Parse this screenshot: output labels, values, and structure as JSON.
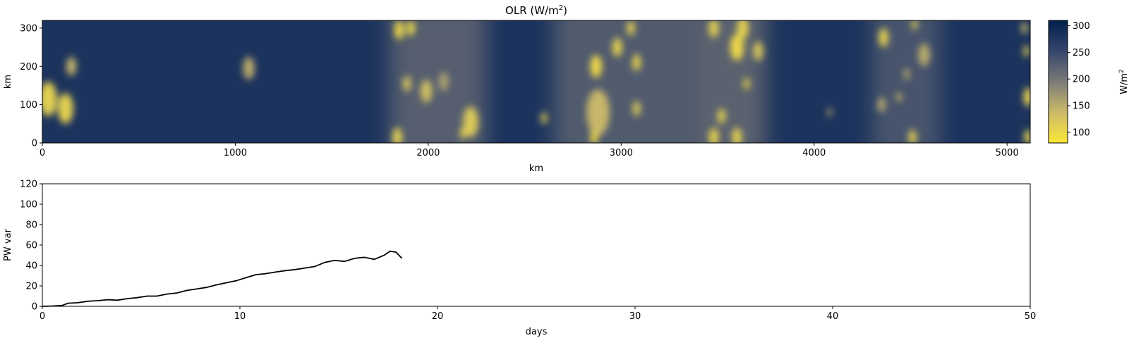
{
  "chart_data": [
    {
      "type": "heatmap",
      "title": "OLR (W/m",
      "title_superscript": "2",
      "title_suffix": ")",
      "xlabel": "km",
      "ylabel": "km",
      "xlim": [
        0,
        5120
      ],
      "ylim": [
        0,
        320
      ],
      "xticks": [
        0,
        1000,
        2000,
        3000,
        4000,
        5000
      ],
      "yticks": [
        0,
        100,
        200,
        300
      ],
      "colormap": "cividis_r",
      "colorbar": {
        "label": "W/m",
        "label_superscript": "2",
        "range": [
          80,
          310
        ],
        "ticks": [
          100,
          150,
          200,
          250,
          300
        ],
        "color_low": "#fde737",
        "color_mid": "#7c7b78",
        "color_high": "#00204c"
      },
      "background_value": 280,
      "moist_bands": [
        {
          "x": [
            1800,
            2300
          ],
          "value": 210
        },
        {
          "x": [
            2650,
            3400
          ],
          "value": 215
        },
        {
          "x": [
            3400,
            3750
          ],
          "value": 205
        },
        {
          "x": [
            4300,
            4650
          ],
          "value": 225
        }
      ],
      "clouds": [
        {
          "x": 30,
          "y": 115,
          "r": 45,
          "value": 110
        },
        {
          "x": 120,
          "y": 90,
          "r": 40,
          "value": 110
        },
        {
          "x": 150,
          "y": 200,
          "r": 25,
          "value": 140
        },
        {
          "x": 1070,
          "y": 195,
          "r": 30,
          "value": 150
        },
        {
          "x": 1850,
          "y": 295,
          "r": 25,
          "value": 100
        },
        {
          "x": 1910,
          "y": 300,
          "r": 20,
          "value": 95
        },
        {
          "x": 1890,
          "y": 155,
          "r": 20,
          "value": 120
        },
        {
          "x": 1840,
          "y": 15,
          "r": 25,
          "value": 110
        },
        {
          "x": 1990,
          "y": 135,
          "r": 30,
          "value": 130
        },
        {
          "x": 2080,
          "y": 160,
          "r": 25,
          "value": 160
        },
        {
          "x": 2180,
          "y": 25,
          "r": 15,
          "value": 100
        },
        {
          "x": 2220,
          "y": 55,
          "r": 40,
          "value": 120
        },
        {
          "x": 2600,
          "y": 65,
          "r": 15,
          "value": 110
        },
        {
          "x": 2870,
          "y": 200,
          "r": 30,
          "value": 100
        },
        {
          "x": 2880,
          "y": 80,
          "r": 60,
          "value": 140
        },
        {
          "x": 2980,
          "y": 250,
          "r": 25,
          "value": 110
        },
        {
          "x": 2860,
          "y": 15,
          "r": 20,
          "value": 100
        },
        {
          "x": 3050,
          "y": 300,
          "r": 20,
          "value": 110
        },
        {
          "x": 3080,
          "y": 210,
          "r": 22,
          "value": 110
        },
        {
          "x": 3080,
          "y": 90,
          "r": 20,
          "value": 120
        },
        {
          "x": 3480,
          "y": 300,
          "r": 25,
          "value": 110
        },
        {
          "x": 3600,
          "y": 250,
          "r": 35,
          "value": 100
        },
        {
          "x": 3630,
          "y": 300,
          "r": 30,
          "value": 110
        },
        {
          "x": 3710,
          "y": 240,
          "r": 25,
          "value": 120
        },
        {
          "x": 3650,
          "y": 155,
          "r": 15,
          "value": 100
        },
        {
          "x": 3520,
          "y": 70,
          "r": 20,
          "value": 110
        },
        {
          "x": 3480,
          "y": 15,
          "r": 25,
          "value": 110
        },
        {
          "x": 3600,
          "y": 15,
          "r": 25,
          "value": 110
        },
        {
          "x": 4360,
          "y": 275,
          "r": 25,
          "value": 110
        },
        {
          "x": 4520,
          "y": 310,
          "r": 15,
          "value": 120
        },
        {
          "x": 4570,
          "y": 230,
          "r": 30,
          "value": 150
        },
        {
          "x": 4480,
          "y": 180,
          "r": 15,
          "value": 150
        },
        {
          "x": 4440,
          "y": 120,
          "r": 12,
          "value": 120
        },
        {
          "x": 4350,
          "y": 100,
          "r": 20,
          "value": 150
        },
        {
          "x": 4510,
          "y": 15,
          "r": 20,
          "value": 110
        },
        {
          "x": 4080,
          "y": 80,
          "r": 12,
          "value": 160
        },
        {
          "x": 5100,
          "y": 240,
          "r": 15,
          "value": 110
        },
        {
          "x": 5110,
          "y": 120,
          "r": 25,
          "value": 110
        },
        {
          "x": 5110,
          "y": 15,
          "r": 20,
          "value": 110
        },
        {
          "x": 5090,
          "y": 300,
          "r": 15,
          "value": 130
        }
      ]
    },
    {
      "type": "line",
      "xlabel": "days",
      "ylabel": "PW var",
      "xlim": [
        0,
        50
      ],
      "ylim": [
        0,
        120
      ],
      "xticks": [
        0,
        10,
        20,
        30,
        40,
        50
      ],
      "yticks": [
        0,
        20,
        40,
        60,
        80,
        100,
        120
      ],
      "line_color": "#000000",
      "series": [
        {
          "x": [
            0,
            0.5,
            1.0,
            1.3,
            1.8,
            2.3,
            2.8,
            3.3,
            3.8,
            4.3,
            4.8,
            5.3,
            5.8,
            6.3,
            6.8,
            7.3,
            7.8,
            8.3,
            8.8,
            9.3,
            9.8,
            10.3,
            10.8,
            11.3,
            11.8,
            12.3,
            12.8,
            13.3,
            13.8,
            14.3,
            14.8,
            15.3,
            15.8,
            16.3,
            16.8,
            17.3,
            17.6,
            17.9,
            18.2
          ],
          "y": [
            0,
            0.3,
            0.8,
            3,
            3.5,
            5,
            5.5,
            6.5,
            6,
            7.5,
            8.5,
            10,
            10,
            12,
            13,
            15.5,
            17,
            18.5,
            21,
            23,
            25,
            28,
            31,
            32,
            33.5,
            35,
            36,
            37.5,
            39,
            43,
            45,
            44,
            47,
            48,
            46,
            50,
            54,
            53,
            47
          ]
        }
      ]
    }
  ]
}
